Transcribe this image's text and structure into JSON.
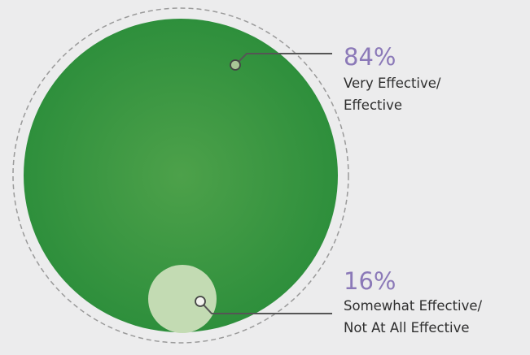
{
  "chart_data": {
    "type": "nested-circle",
    "title": "",
    "series": [
      {
        "label_lines": [
          "Very Effective/",
          "Effective"
        ],
        "value": 84,
        "display": "84%",
        "color": "#3d9b45"
      },
      {
        "label_lines": [
          "Somewhat Effective/",
          "Not At All Effective"
        ],
        "value": 16,
        "display": "16%",
        "color": "#c3dbb3"
      }
    ],
    "colors": {
      "background": "#ececed",
      "percent_text": "#8b79b8",
      "label_text": "#2e2e2e",
      "leader_line": "#555555",
      "outline": "#9a9a9a"
    }
  }
}
